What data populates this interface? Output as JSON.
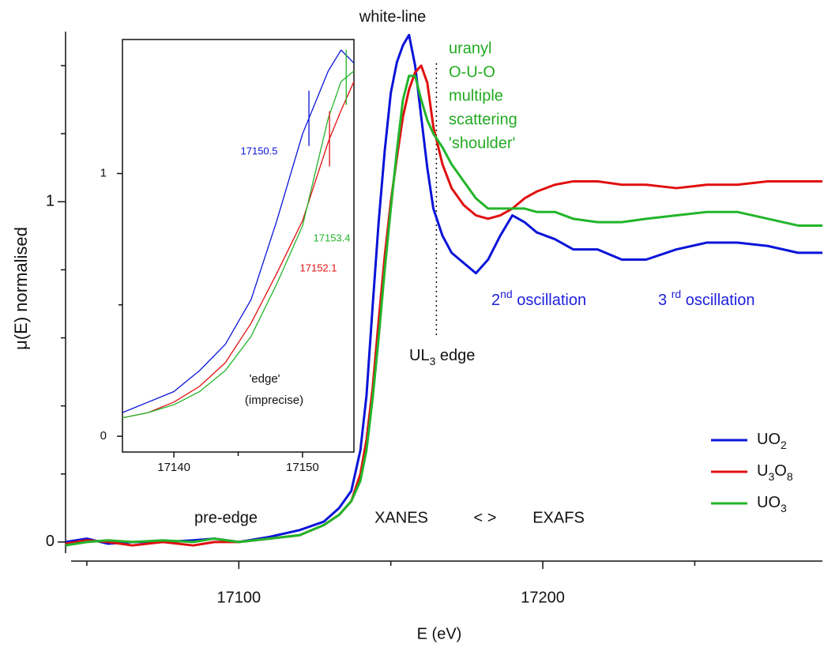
{
  "chart_data": [
    {
      "type": "line",
      "xlabel": "E (eV)",
      "ylabel": "μ(E) normalised",
      "xlim": [
        17043,
        17292
      ],
      "ylim": [
        -0.056,
        1.5
      ],
      "xticks": [
        17100,
        17200
      ],
      "xminorticks": [
        17050,
        17150,
        17250
      ],
      "yticks": [
        0,
        1
      ],
      "yminorticks": [
        0.2,
        0.4,
        0.6,
        0.8,
        1.2,
        1.4
      ],
      "legend": "lower right",
      "x": [
        17043,
        17050,
        17057,
        17065,
        17075,
        17085,
        17092,
        17100,
        17110,
        17120,
        17128,
        17133,
        17137,
        17140,
        17142,
        17144,
        17146,
        17148,
        17150,
        17152,
        17154,
        17156,
        17158,
        17160,
        17162,
        17164,
        17167,
        17170,
        17174,
        17178,
        17182,
        17186,
        17190,
        17194,
        17198,
        17204,
        17210,
        17218,
        17226,
        17234,
        17244,
        17254,
        17264,
        17274,
        17284,
        17292
      ],
      "series": [
        {
          "name": "UO2",
          "color": "#0a14d8",
          "values": [
            0.0,
            0.01,
            -0.005,
            0.0,
            0.0,
            0.005,
            0.01,
            0.0,
            0.015,
            0.035,
            0.06,
            0.1,
            0.15,
            0.27,
            0.43,
            0.69,
            0.94,
            1.15,
            1.32,
            1.41,
            1.46,
            1.49,
            1.4,
            1.25,
            1.1,
            0.98,
            0.9,
            0.85,
            0.82,
            0.79,
            0.83,
            0.9,
            0.96,
            0.94,
            0.91,
            0.89,
            0.86,
            0.86,
            0.83,
            0.83,
            0.86,
            0.88,
            0.88,
            0.87,
            0.85,
            0.85
          ]
        },
        {
          "name": "U3O8",
          "color": "#e01010",
          "values": [
            -0.005,
            0.005,
            0.0,
            -0.01,
            0.0,
            -0.01,
            0.0,
            0.0,
            0.01,
            0.02,
            0.05,
            0.08,
            0.12,
            0.2,
            0.3,
            0.45,
            0.65,
            0.84,
            1.0,
            1.13,
            1.25,
            1.33,
            1.38,
            1.4,
            1.35,
            1.22,
            1.11,
            1.04,
            0.99,
            0.96,
            0.95,
            0.96,
            0.98,
            1.01,
            1.03,
            1.05,
            1.06,
            1.06,
            1.05,
            1.05,
            1.04,
            1.05,
            1.05,
            1.06,
            1.06,
            1.06
          ]
        },
        {
          "name": "UO3",
          "color": "#22b52a",
          "values": [
            -0.01,
            0.0,
            0.005,
            0.0,
            0.005,
            0.0,
            0.01,
            0.0,
            0.01,
            0.02,
            0.05,
            0.08,
            0.12,
            0.18,
            0.27,
            0.42,
            0.6,
            0.8,
            0.98,
            1.15,
            1.3,
            1.37,
            1.37,
            1.3,
            1.24,
            1.2,
            1.16,
            1.11,
            1.06,
            1.01,
            0.98,
            0.98,
            0.98,
            0.98,
            0.97,
            0.97,
            0.95,
            0.94,
            0.94,
            0.95,
            0.96,
            0.97,
            0.97,
            0.95,
            0.93,
            0.93
          ]
        }
      ],
      "vlines": [
        {
          "x": 17165,
          "style": "dotted"
        }
      ],
      "annotations": {
        "white_line": "white-line",
        "shoulder": [
          "uranyl",
          "O-U-O",
          "multiple",
          "scattering",
          "'shoulder'"
        ],
        "second_osc": [
          "2",
          "nd",
          " oscillation"
        ],
        "third_osc": [
          "3 ",
          "rd",
          " oscillation"
        ],
        "edge": [
          "UL",
          "3",
          " edge"
        ],
        "pre_edge": "pre-edge",
        "xanes": "XANES",
        "arrows": "< >",
        "exafs": "EXAFS"
      }
    },
    {
      "type": "line",
      "xlim": [
        17136,
        17154
      ],
      "ylim": [
        -0.06,
        1.51
      ],
      "xticks": [
        17140,
        17150
      ],
      "xminorticks": [
        17145
      ],
      "yticks": [
        0,
        1
      ],
      "yminorticks": [
        0.5
      ],
      "x": [
        17136,
        17138,
        17140,
        17142,
        17144,
        17146,
        17148,
        17150,
        17152,
        17153,
        17154
      ],
      "series": [
        {
          "color": "#0a14d8",
          "values": [
            0.09,
            0.13,
            0.17,
            0.25,
            0.35,
            0.52,
            0.82,
            1.15,
            1.39,
            1.47,
            1.42
          ]
        },
        {
          "color": "#e01010",
          "values": [
            0.07,
            0.09,
            0.13,
            0.19,
            0.28,
            0.43,
            0.62,
            0.82,
            1.12,
            1.24,
            1.35
          ]
        },
        {
          "color": "#22b52a",
          "values": [
            0.07,
            0.09,
            0.12,
            0.17,
            0.25,
            0.38,
            0.58,
            0.8,
            1.21,
            1.35,
            1.39
          ]
        }
      ],
      "edge_markers": [
        {
          "x": 17150.5,
          "color": "#0a14d8"
        },
        {
          "x": 17152.1,
          "color": "#e01010"
        },
        {
          "x": 17153.4,
          "color": "#22b52a"
        }
      ],
      "annotations": [
        "'edge'",
        "(imprecise)"
      ]
    }
  ]
}
